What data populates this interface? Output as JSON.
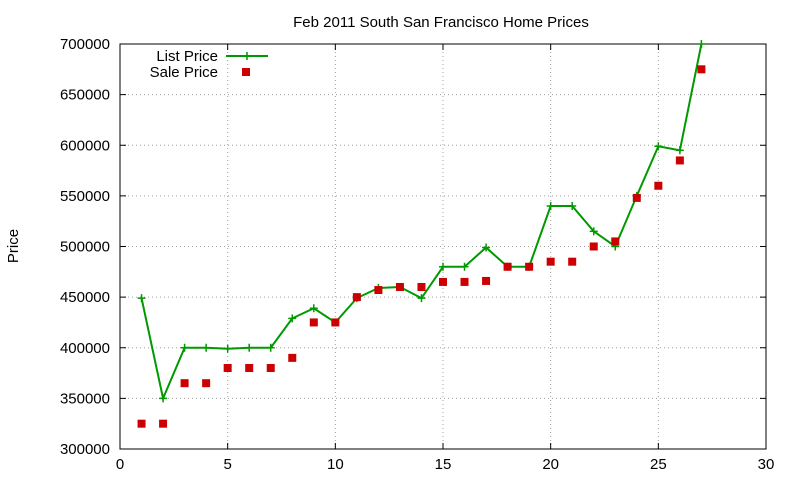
{
  "chart_data": {
    "type": "line",
    "title": "Feb 2011 South San Francisco Home Prices",
    "xlabel": "",
    "ylabel": "Price",
    "xlim": [
      0,
      30
    ],
    "ylim": [
      300000,
      700000
    ],
    "xticks": [
      0,
      5,
      10,
      15,
      20,
      25,
      30
    ],
    "yticks": [
      300000,
      350000,
      400000,
      450000,
      500000,
      550000,
      600000,
      650000,
      700000
    ],
    "grid": true,
    "legend_position": "top-left",
    "series": [
      {
        "name": "List Price",
        "style": "line-plus",
        "color": "#009900",
        "x": [
          1,
          2,
          3,
          4,
          5,
          6,
          7,
          8,
          9,
          10,
          11,
          12,
          13,
          14,
          15,
          16,
          17,
          18,
          19,
          20,
          21,
          22,
          23,
          24,
          25,
          26,
          27
        ],
        "y": [
          449000,
          350000,
          400000,
          400000,
          399000,
          400000,
          400000,
          429000,
          439000,
          425000,
          449000,
          459000,
          460000,
          449000,
          480000,
          480000,
          499000,
          480000,
          480000,
          540000,
          540000,
          515000,
          500000,
          550000,
          599000,
          595000,
          700000
        ]
      },
      {
        "name": "Sale Price",
        "style": "square-points",
        "color": "#cc0000",
        "x": [
          1,
          2,
          3,
          4,
          5,
          6,
          7,
          8,
          9,
          10,
          11,
          12,
          13,
          14,
          15,
          16,
          17,
          18,
          19,
          20,
          21,
          22,
          23,
          24,
          25,
          26,
          27
        ],
        "y": [
          325000,
          325000,
          365000,
          365000,
          380000,
          380000,
          380000,
          390000,
          425000,
          425000,
          450000,
          457000,
          460000,
          460000,
          465000,
          465000,
          466000,
          480000,
          480000,
          485000,
          485000,
          500000,
          505000,
          548000,
          560000,
          585000,
          675000
        ]
      }
    ]
  }
}
